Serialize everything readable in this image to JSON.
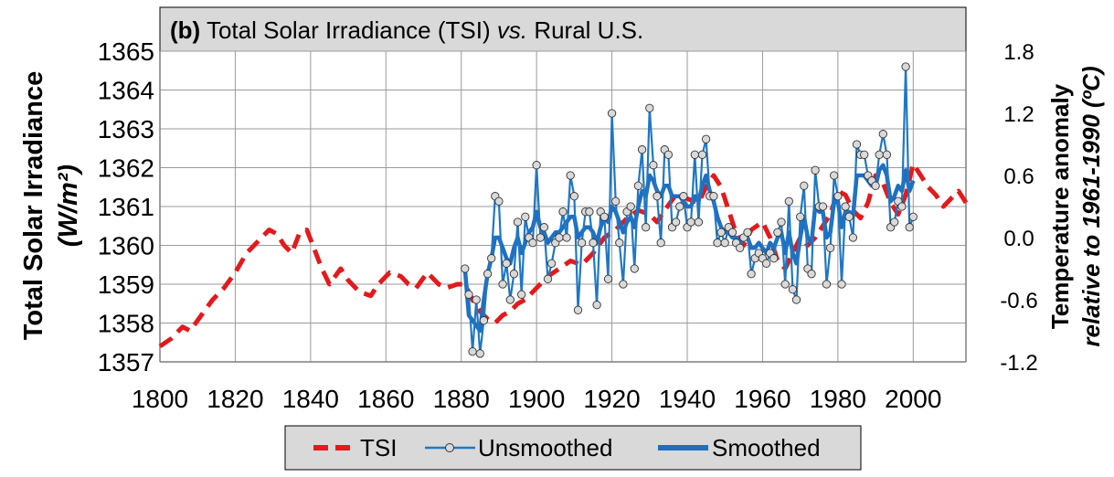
{
  "chart_data": {
    "type": "line",
    "title": {
      "prefix": "(b)",
      "main": " Total Solar Irradiance (TSI) ",
      "vs": "vs.",
      "rest": " Rural U.S."
    },
    "y_left": {
      "label_line1": "Total Solar Irradiance",
      "label_line2": "(W/m²)",
      "range": [
        1357,
        1365
      ],
      "ticks": [
        "1357",
        "1358",
        "1359",
        "1360",
        "1361",
        "1362",
        "1363",
        "1364",
        "1365"
      ]
    },
    "y_right": {
      "label_line1": "Temperature anomaly",
      "label_line2": "relative to 1961-1990 (ºC)",
      "range": [
        -1.2,
        1.8
      ],
      "ticks": [
        "-1.2",
        "-0.6",
        "0.0",
        "0.6",
        "1.2",
        "1.8"
      ]
    },
    "x": {
      "range": [
        1800,
        2014
      ],
      "ticks": [
        "1800",
        "1820",
        "1840",
        "1860",
        "1880",
        "1900",
        "1920",
        "1940",
        "1960",
        "1980",
        "2000"
      ]
    },
    "grid": true,
    "legend": {
      "placement": "bottom",
      "items": [
        "TSI",
        "Unsmoothed",
        "Smoothed"
      ]
    },
    "colors": {
      "tsi": "#e31a1c",
      "unsmoothed": "#1f77c4",
      "smoothed": "#1f6fc0",
      "marker_fill": "#d9d9d9"
    },
    "series": [
      {
        "name": "TSI",
        "axis": "left",
        "points": [
          [
            1800,
            1357.4
          ],
          [
            1803,
            1357.6
          ],
          [
            1806,
            1357.9
          ],
          [
            1808,
            1357.8
          ],
          [
            1811,
            1358.2
          ],
          [
            1814,
            1358.6
          ],
          [
            1817,
            1358.9
          ],
          [
            1820,
            1359.3
          ],
          [
            1823,
            1359.8
          ],
          [
            1826,
            1360.1
          ],
          [
            1829,
            1360.4
          ],
          [
            1831,
            1360.3
          ],
          [
            1833,
            1360.0
          ],
          [
            1835,
            1359.8
          ],
          [
            1837,
            1360.3
          ],
          [
            1839,
            1360.4
          ],
          [
            1841,
            1359.9
          ],
          [
            1843,
            1359.4
          ],
          [
            1845,
            1359.0
          ],
          [
            1848,
            1359.4
          ],
          [
            1850,
            1359.1
          ],
          [
            1853,
            1358.8
          ],
          [
            1856,
            1358.7
          ],
          [
            1858,
            1359.0
          ],
          [
            1861,
            1359.3
          ],
          [
            1864,
            1359.2
          ],
          [
            1866,
            1359.0
          ],
          [
            1868,
            1358.9
          ],
          [
            1871,
            1359.3
          ],
          [
            1874,
            1359.0
          ],
          [
            1876,
            1358.9
          ],
          [
            1879,
            1359.0
          ],
          [
            1881,
            1359.0
          ],
          [
            1883,
            1358.6
          ],
          [
            1885,
            1358.3
          ],
          [
            1887,
            1358.1
          ],
          [
            1889,
            1358.0
          ],
          [
            1891,
            1358.2
          ],
          [
            1893,
            1358.3
          ],
          [
            1895,
            1358.5
          ],
          [
            1897,
            1358.6
          ],
          [
            1900,
            1358.9
          ],
          [
            1903,
            1359.2
          ],
          [
            1906,
            1359.4
          ],
          [
            1909,
            1359.6
          ],
          [
            1912,
            1359.5
          ],
          [
            1915,
            1359.8
          ],
          [
            1918,
            1360.2
          ],
          [
            1921,
            1360.4
          ],
          [
            1924,
            1360.7
          ],
          [
            1927,
            1360.9
          ],
          [
            1930,
            1360.8
          ],
          [
            1932,
            1360.6
          ],
          [
            1934,
            1360.9
          ],
          [
            1937,
            1361.3
          ],
          [
            1940,
            1361.2
          ],
          [
            1943,
            1361.1
          ],
          [
            1945,
            1361.5
          ],
          [
            1947,
            1361.8
          ],
          [
            1949,
            1361.5
          ],
          [
            1951,
            1360.9
          ],
          [
            1953,
            1360.3
          ],
          [
            1955,
            1360.0
          ],
          [
            1957,
            1360.4
          ],
          [
            1960,
            1360.6
          ],
          [
            1962,
            1360.2
          ],
          [
            1964,
            1359.6
          ],
          [
            1966,
            1359.4
          ],
          [
            1968,
            1359.8
          ],
          [
            1970,
            1360.2
          ],
          [
            1972,
            1360.0
          ],
          [
            1974,
            1360.2
          ],
          [
            1976,
            1360.5
          ],
          [
            1978,
            1360.8
          ],
          [
            1980,
            1361.4
          ],
          [
            1982,
            1361.3
          ],
          [
            1984,
            1360.9
          ],
          [
            1986,
            1360.7
          ],
          [
            1988,
            1361.1
          ],
          [
            1990,
            1361.8
          ],
          [
            1992,
            1361.6
          ],
          [
            1994,
            1361.1
          ],
          [
            1996,
            1360.8
          ],
          [
            1998,
            1361.3
          ],
          [
            2000,
            1362.1
          ],
          [
            2002,
            1361.8
          ],
          [
            2004,
            1361.5
          ],
          [
            2006,
            1361.3
          ],
          [
            2008,
            1361.0
          ],
          [
            2010,
            1361.2
          ],
          [
            2012,
            1361.4
          ],
          [
            2014,
            1361.1
          ]
        ]
      },
      {
        "name": "Unsmoothed",
        "axis": "right",
        "x_start": 1881,
        "values": [
          -0.3,
          -0.55,
          -1.1,
          -0.6,
          -1.12,
          -0.8,
          -0.35,
          -0.2,
          0.4,
          0.35,
          -0.45,
          -0.25,
          -0.6,
          -0.35,
          0.15,
          -0.55,
          0.2,
          0.0,
          -0.05,
          0.7,
          0.0,
          0.1,
          -0.4,
          -0.25,
          -0.05,
          0.0,
          0.25,
          0.0,
          0.6,
          0.4,
          -0.7,
          -0.05,
          0.25,
          0.25,
          -0.05,
          -0.65,
          0.25,
          0.2,
          -0.4,
          1.2,
          0.35,
          -0.05,
          -0.45,
          0.25,
          0.3,
          -0.3,
          0.5,
          0.85,
          0.1,
          1.25,
          0.7,
          0.4,
          -0.05,
          0.85,
          0.8,
          0.1,
          0.15,
          0.3,
          0.4,
          0.1,
          0.15,
          0.8,
          0.15,
          0.8,
          0.95,
          0.4,
          0.4,
          -0.05,
          0.05,
          -0.05,
          0.1,
          0.05,
          -0.05,
          -0.1,
          0.0,
          0.05,
          -0.35,
          -0.2,
          -0.15,
          -0.2,
          -0.25,
          -0.15,
          -0.2,
          0.05,
          0.15,
          -0.45,
          0.35,
          -0.5,
          -0.6,
          0.2,
          0.5,
          -0.3,
          -0.35,
          0.65,
          0.3,
          0.3,
          -0.45,
          -0.1,
          0.6,
          0.4,
          -0.45,
          0.3,
          0.2,
          0.0,
          0.9,
          0.8,
          0.8,
          0.6,
          0.55,
          0.5,
          0.8,
          1.0,
          0.8,
          0.1,
          0.15,
          0.35,
          0.3,
          1.65,
          0.1,
          0.2
        ]
      },
      {
        "name": "Smoothed",
        "axis": "right",
        "x_start": 1881,
        "values": [
          -0.3,
          -0.75,
          -0.8,
          -0.85,
          -0.9,
          -0.6,
          -0.35,
          -0.2,
          0.0,
          0.0,
          -0.1,
          -0.2,
          -0.25,
          -0.1,
          0.0,
          -0.15,
          -0.05,
          0.05,
          0.1,
          0.25,
          0.1,
          0.05,
          -0.05,
          0.0,
          0.05,
          0.05,
          0.1,
          0.15,
          0.2,
          0.2,
          0.0,
          0.05,
          0.1,
          0.1,
          0.05,
          -0.05,
          0.1,
          0.2,
          0.15,
          0.3,
          0.25,
          0.15,
          0.05,
          0.15,
          0.2,
          0.1,
          0.3,
          0.45,
          0.4,
          0.6,
          0.55,
          0.45,
          0.4,
          0.5,
          0.5,
          0.4,
          0.4,
          0.4,
          0.35,
          0.3,
          0.3,
          0.4,
          0.35,
          0.5,
          0.6,
          0.45,
          0.35,
          0.2,
          0.1,
          0.05,
          0.05,
          0.0,
          0.0,
          -0.05,
          0.0,
          0.0,
          -0.1,
          -0.1,
          -0.05,
          -0.1,
          -0.15,
          -0.05,
          -0.1,
          0.0,
          0.05,
          -0.15,
          0.05,
          -0.15,
          -0.25,
          0.0,
          0.2,
          0.0,
          -0.05,
          0.3,
          0.25,
          0.25,
          0.0,
          0.05,
          0.35,
          0.35,
          0.1,
          0.25,
          0.25,
          0.2,
          0.6,
          0.6,
          0.6,
          0.55,
          0.5,
          0.5,
          0.65,
          0.7,
          0.6,
          0.35,
          0.4,
          0.5,
          0.45,
          0.65,
          0.45,
          0.55
        ]
      }
    ]
  }
}
